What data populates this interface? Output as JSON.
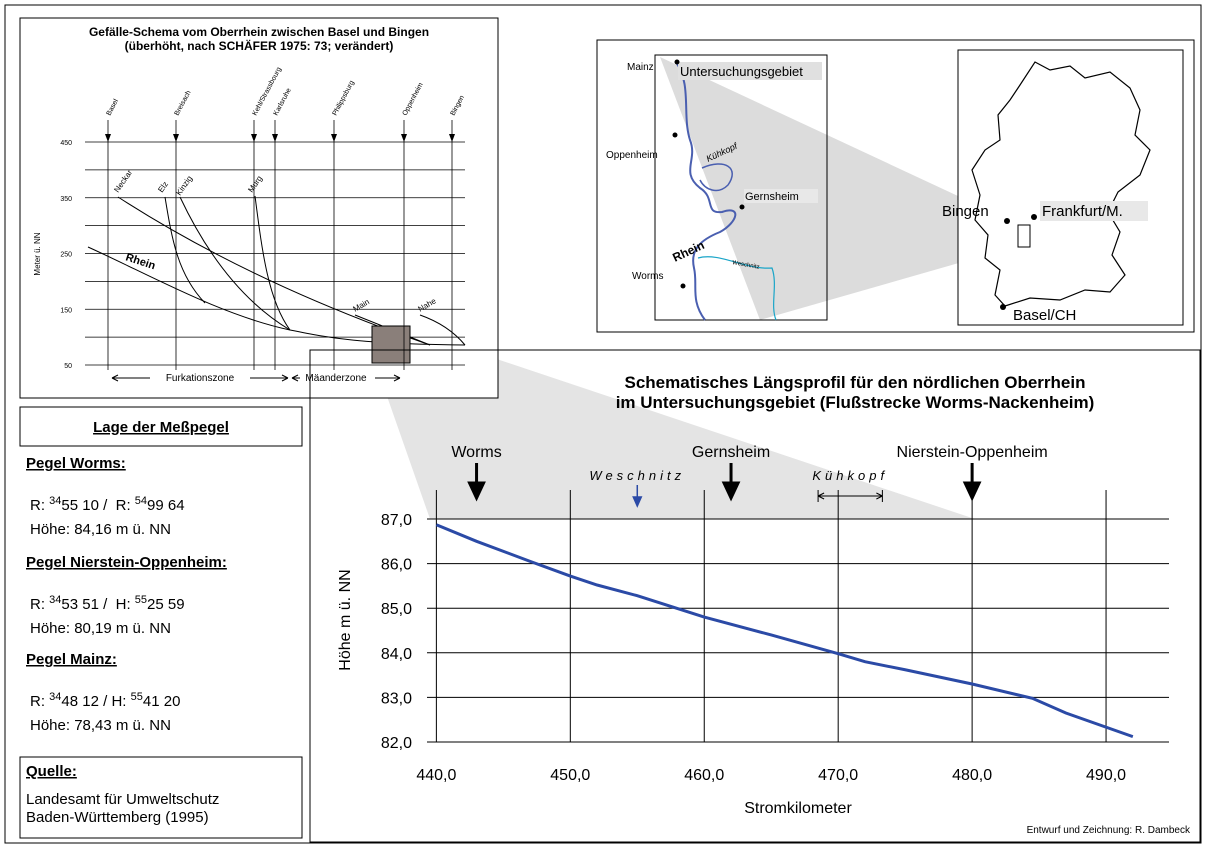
{
  "chart_data": [
    {
      "type": "line",
      "title": "Schematisches Längsprofil für den nördlichen Oberrhein",
      "subtitle": "im Untersuchungsgebiet (Flußstrecke Worms-Nackenheim)",
      "xlabel": "Stromkilometer",
      "ylabel": "Höhe m ü. NN",
      "x": [
        440,
        443,
        447,
        450,
        452,
        455,
        460,
        465,
        470,
        472,
        475,
        480,
        484.5,
        487,
        492
      ],
      "values": [
        86.87,
        86.5,
        86.05,
        85.72,
        85.52,
        85.28,
        84.8,
        84.4,
        83.98,
        83.8,
        83.62,
        83.3,
        82.98,
        82.65,
        82.12
      ],
      "color": "#2b4aa6",
      "xlim": [
        439.3,
        494.7
      ],
      "ylim": [
        82,
        87.65
      ],
      "xticks": [
        {
          "value": 440,
          "label": "440,0"
        },
        {
          "value": 450,
          "label": "450,0"
        },
        {
          "value": 460,
          "label": "460,0"
        },
        {
          "value": 470,
          "label": "470,0"
        },
        {
          "value": 480,
          "label": "480,0"
        },
        {
          "value": 490,
          "label": "490,0"
        }
      ],
      "yticks": [
        {
          "value": 82,
          "label": "82,0"
        },
        {
          "value": 83,
          "label": "83,0"
        },
        {
          "value": 84,
          "label": "84,0"
        },
        {
          "value": 85,
          "label": "85,0"
        },
        {
          "value": 86,
          "label": "86,0"
        },
        {
          "value": 87,
          "label": "87,0"
        }
      ],
      "grid": true,
      "annotations": [
        {
          "text": "Worms",
          "x": 443
        },
        {
          "text": "Weschnitz",
          "x": 455,
          "color": "#2b4aa6"
        },
        {
          "text": "Gernsheim",
          "x": 462
        },
        {
          "text": "Nierstein-Oppenheim",
          "x": 480
        },
        {
          "text": "Kühkopf",
          "x": [
            468.5,
            473.3
          ]
        }
      ]
    },
    {
      "type": "schema",
      "title": "Gefälle-Schema vom Oberrhein zwischen Basel und Bingen",
      "subtitle": "(überhöht, nach SCHÄFER 1975: 73; verändert)",
      "ylabel": "Meter ü. NN",
      "ylim": [
        50,
        450
      ],
      "yticks": [
        50,
        150,
        250,
        350,
        450
      ],
      "ygrid": [
        50,
        100,
        150,
        200,
        250,
        300,
        350,
        400,
        450
      ],
      "stations": [
        "Basel",
        "Breisach",
        "Kehl/Strassbourg",
        "Karlsruhe",
        "Philippsburg",
        "Oppenheim",
        "Bingen"
      ],
      "rivers": [
        "Rhein",
        "Neckar",
        "Elz",
        "Kinzig",
        "Murg",
        "Main",
        "Nahe"
      ],
      "zones": [
        "Furkationszone",
        "Mäanderzone"
      ]
    }
  ],
  "gauges": {
    "title": "Lage der Meßpegel",
    "items": [
      {
        "name": "Pegel Worms:",
        "coords": [
          {
            "text": "R: "
          },
          {
            "sup": "34"
          },
          {
            "text": "55 10 /  R: "
          },
          {
            "sup": "54"
          },
          {
            "text": "99 64"
          }
        ],
        "height": "Höhe: 84,16 m ü. NN"
      },
      {
        "name": "Pegel Nierstein-Oppenheim:",
        "coords": [
          {
            "text": "R: "
          },
          {
            "sup": "34"
          },
          {
            "text": "53 51 /  H: "
          },
          {
            "sup": "55"
          },
          {
            "text": "25 59"
          }
        ],
        "height": "Höhe: 80,19 m ü. NN"
      },
      {
        "name": "Pegel Mainz:",
        "coords": [
          {
            "text": "R: "
          },
          {
            "sup": "34"
          },
          {
            "text": "48 12 / H: "
          },
          {
            "sup": "55"
          },
          {
            "text": "41 20"
          }
        ],
        "height": "Höhe: 78,43 m ü. NN"
      }
    ]
  },
  "source": {
    "title": "Quelle:",
    "lines": [
      "Landesamt für Umweltschutz",
      "Baden-Württemberg (1995)"
    ]
  },
  "map_local": {
    "title": "Untersuchungsgebiet",
    "places": [
      "Mainz",
      "Oppenheim",
      "Gernsheim",
      "Worms"
    ],
    "river": "Rhein",
    "features": [
      "Kühkopf",
      "Weschnitz"
    ]
  },
  "map_germany": {
    "places": [
      "Bingen",
      "Frankfurt/M.",
      "Basel/CH"
    ]
  },
  "credit": "Entwurf und Zeichnung: R. Dambeck"
}
